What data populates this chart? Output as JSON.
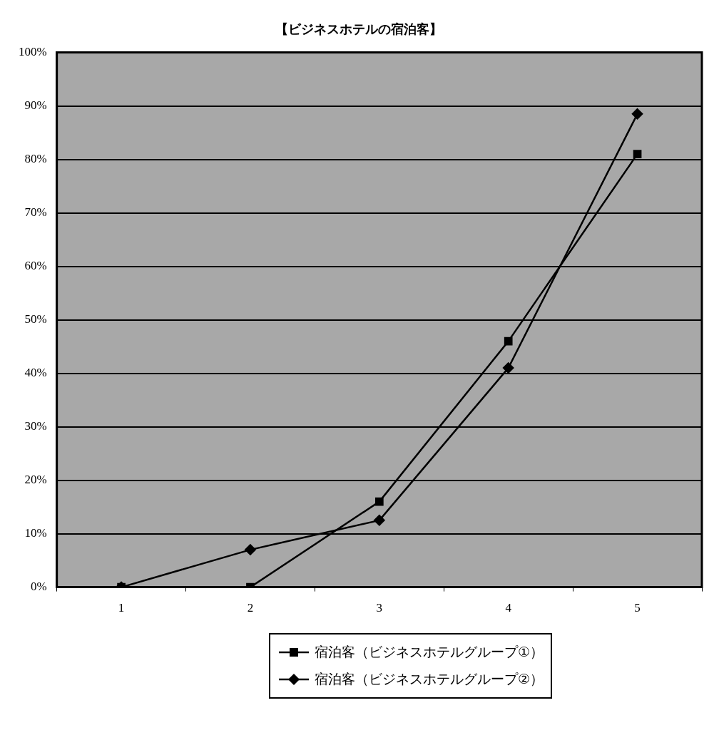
{
  "chart_data": {
    "type": "line",
    "title": "【ビジネスホテルの宿泊客】",
    "categories": [
      "1",
      "2",
      "3",
      "4",
      "5"
    ],
    "series": [
      {
        "name": "宿泊客（ビジネスホテルグループ①）",
        "color": "#000000",
        "marker": "square",
        "values": [
          0,
          0,
          16,
          46,
          81
        ]
      },
      {
        "name": "宿泊客（ビジネスホテルグループ②）",
        "color": "#000000",
        "marker": "diamond",
        "values": [
          0,
          7,
          12.5,
          41,
          88.5
        ]
      }
    ],
    "ylim": [
      0,
      100
    ],
    "yticks": [
      {
        "value": 0,
        "label": "0%"
      },
      {
        "value": 10,
        "label": "10%"
      },
      {
        "value": 20,
        "label": "20%"
      },
      {
        "value": 30,
        "label": "30%"
      },
      {
        "value": 40,
        "label": "40%"
      },
      {
        "value": 50,
        "label": "50%"
      },
      {
        "value": 60,
        "label": "60%"
      },
      {
        "value": 70,
        "label": "70%"
      },
      {
        "value": 80,
        "label": "80%"
      },
      {
        "value": 90,
        "label": "90%"
      },
      {
        "value": 100,
        "label": "100%"
      }
    ],
    "grid": "y",
    "legend": "bottom",
    "line_style": "solid"
  }
}
